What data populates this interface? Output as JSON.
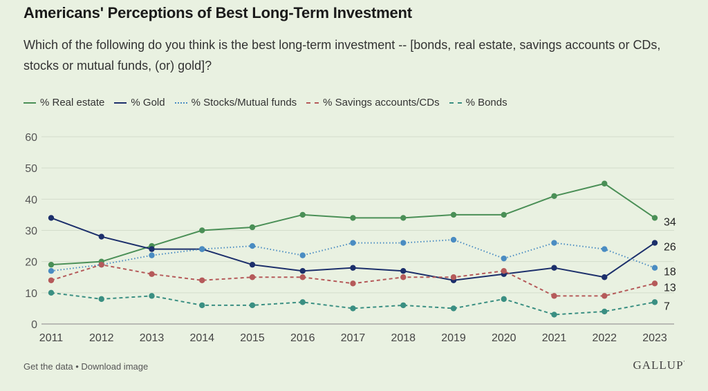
{
  "title": "Americans' Perceptions of Best Long-Term Investment",
  "subtitle": "Which of the following do you think is the best long-term investment -- [bonds, real estate, savings accounts or CDs, stocks or mutual funds, (or) gold]?",
  "footer": {
    "get_data": "Get the data",
    "separator": "•",
    "download": "Download image"
  },
  "logo": {
    "text": "GALLUP",
    "mark": "'"
  },
  "chart_data": {
    "type": "line",
    "title": "Americans' Perceptions of Best Long-Term Investment",
    "xlabel": "",
    "ylabel": "",
    "x": [
      "2011",
      "2012",
      "2013",
      "2014",
      "2015",
      "2016",
      "2017",
      "2018",
      "2019",
      "2020",
      "2021",
      "2022",
      "2023"
    ],
    "ylim": [
      0,
      60
    ],
    "yticks": [
      0,
      10,
      20,
      30,
      40,
      50,
      60
    ],
    "grid": true,
    "legend_position": "top-left",
    "series": [
      {
        "name": "% Real estate",
        "color": "#4a8f56",
        "dash": "solid",
        "values": [
          19,
          20,
          25,
          30,
          31,
          35,
          34,
          34,
          35,
          35,
          41,
          45,
          34
        ],
        "end_label": "34"
      },
      {
        "name": "% Gold",
        "color": "#1c2f6b",
        "dash": "solid",
        "values": [
          34,
          28,
          24,
          24,
          19,
          17,
          18,
          17,
          14,
          16,
          18,
          15,
          26
        ],
        "end_label": "26"
      },
      {
        "name": "% Stocks/Mutual funds",
        "color": "#4a8cc2",
        "dash": "dotted",
        "values": [
          17,
          19,
          22,
          24,
          25,
          22,
          26,
          26,
          27,
          21,
          26,
          24,
          18
        ],
        "end_label": "18"
      },
      {
        "name": "% Savings accounts/CDs",
        "color": "#b55a5a",
        "dash": "dashed",
        "values": [
          14,
          19,
          16,
          14,
          15,
          15,
          13,
          15,
          15,
          17,
          9,
          9,
          13
        ],
        "end_label": "13"
      },
      {
        "name": "% Bonds",
        "color": "#3a8f82",
        "dash": "dashed",
        "values": [
          10,
          8,
          9,
          6,
          6,
          7,
          5,
          6,
          5,
          8,
          3,
          4,
          7
        ],
        "end_label": "7"
      }
    ]
  }
}
